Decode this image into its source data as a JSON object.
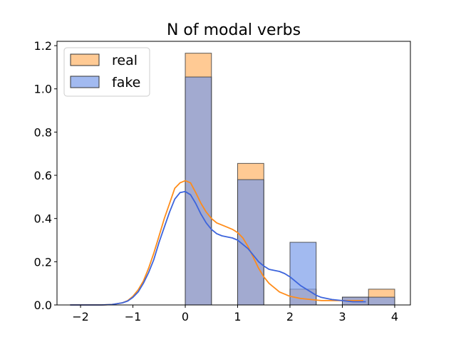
{
  "chart_data": {
    "type": "bar",
    "title": "N of modal verbs",
    "xlabel": "",
    "ylabel": "",
    "xlim": [
      -2.45,
      4.3
    ],
    "ylim": [
      0,
      1.22
    ],
    "x_ticks": [
      -2,
      -1,
      0,
      1,
      2,
      3,
      4
    ],
    "x_tick_labels": [
      "−2",
      "−1",
      "0",
      "1",
      "2",
      "3",
      "4"
    ],
    "y_ticks": [
      0.0,
      0.2,
      0.4,
      0.6,
      0.8,
      1.0,
      1.2
    ],
    "y_tick_labels": [
      "0.0",
      "0.2",
      "0.4",
      "0.6",
      "0.8",
      "1.0",
      "1.2"
    ],
    "grid": false,
    "legend_position": "top-left",
    "bin_edges": [
      0,
      0.5,
      1,
      1.5,
      2,
      2.5,
      3,
      3.5,
      4
    ],
    "series": [
      {
        "name": "real",
        "color": "#ffb366",
        "line_color": "#ff8c1a",
        "values": [
          1.165,
          0,
          0.655,
          0,
          0.073,
          0,
          0.036,
          0.073
        ],
        "kde": {
          "x": [
            -2.2,
            -1.6,
            -1.4,
            -1.2,
            -1.1,
            -1.0,
            -0.9,
            -0.8,
            -0.7,
            -0.6,
            -0.5,
            -0.4,
            -0.3,
            -0.2,
            -0.1,
            0.0,
            0.1,
            0.2,
            0.3,
            0.4,
            0.5,
            0.6,
            0.7,
            0.8,
            0.9,
            1.0,
            1.1,
            1.2,
            1.3,
            1.4,
            1.5,
            1.6,
            1.7,
            1.8,
            1.9,
            2.0,
            2.2,
            2.4,
            2.6,
            2.8,
            3.0,
            3.2,
            3.4
          ],
          "y": [
            0.0,
            0.0,
            0.002,
            0.01,
            0.02,
            0.04,
            0.07,
            0.11,
            0.17,
            0.24,
            0.32,
            0.4,
            0.47,
            0.54,
            0.565,
            0.575,
            0.565,
            0.52,
            0.47,
            0.43,
            0.4,
            0.38,
            0.37,
            0.36,
            0.35,
            0.335,
            0.31,
            0.27,
            0.22,
            0.17,
            0.13,
            0.1,
            0.08,
            0.06,
            0.05,
            0.04,
            0.03,
            0.025,
            0.02,
            0.02,
            0.02,
            0.02,
            0.02
          ]
        }
      },
      {
        "name": "fake",
        "color": "#7b9cea",
        "line_color": "#3c64dc",
        "values": [
          1.055,
          0,
          0.58,
          0,
          0.29,
          0,
          0.036,
          0.036
        ],
        "kde": {
          "x": [
            -2.2,
            -1.6,
            -1.4,
            -1.2,
            -1.1,
            -1.0,
            -0.9,
            -0.8,
            -0.7,
            -0.6,
            -0.5,
            -0.4,
            -0.3,
            -0.2,
            -0.1,
            0.0,
            0.1,
            0.2,
            0.3,
            0.4,
            0.5,
            0.6,
            0.7,
            0.8,
            0.9,
            1.0,
            1.1,
            1.2,
            1.3,
            1.4,
            1.5,
            1.6,
            1.7,
            1.8,
            1.9,
            2.0,
            2.1,
            2.2,
            2.3,
            2.4,
            2.5,
            2.6,
            2.8,
            3.0,
            3.2,
            3.45
          ],
          "y": [
            0.0,
            0.0,
            0.002,
            0.01,
            0.018,
            0.035,
            0.06,
            0.1,
            0.15,
            0.21,
            0.29,
            0.36,
            0.43,
            0.49,
            0.52,
            0.525,
            0.51,
            0.47,
            0.42,
            0.38,
            0.35,
            0.33,
            0.32,
            0.315,
            0.31,
            0.3,
            0.28,
            0.26,
            0.23,
            0.2,
            0.18,
            0.165,
            0.16,
            0.155,
            0.145,
            0.13,
            0.11,
            0.09,
            0.075,
            0.06,
            0.045,
            0.035,
            0.025,
            0.02,
            0.015,
            0.015
          ]
        }
      }
    ]
  }
}
